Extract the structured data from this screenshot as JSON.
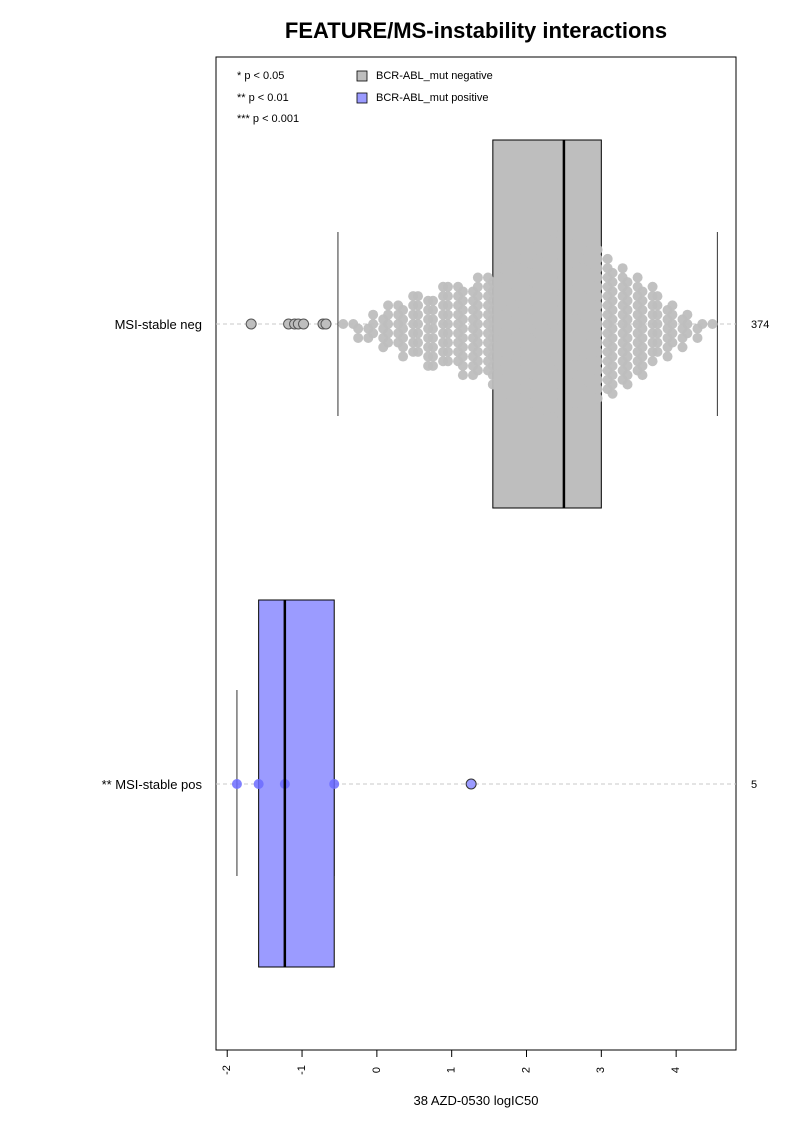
{
  "chart_data": {
    "type": "boxplot-beeswarm",
    "title": "FEATURE/MS-instability interactions",
    "xlabel": "38 AZD-0530 logIC50",
    "xlim": [
      -2.15,
      4.8
    ],
    "x_ticks": [
      "-2",
      "-1",
      "0",
      "1",
      "2",
      "3",
      "4"
    ],
    "x_tick_values": [
      -2,
      -1,
      0,
      1,
      2,
      3,
      4
    ],
    "significance_legend": [
      "* p < 0.05",
      "** p < 0.01",
      "*** p < 0.001"
    ],
    "legend": [
      {
        "label": "BCR-ABL_mut negative",
        "color": "#bebebe"
      },
      {
        "label": "BCR-ABL_mut positive",
        "color": "#9b9bff"
      }
    ],
    "groups": [
      {
        "label": "MSI-stable neg",
        "n": "374",
        "color": "#bebebe",
        "box": {
          "whisker_low": -0.52,
          "q1": 1.55,
          "median": 2.5,
          "q3": 3.0,
          "whisker_high": 4.55
        },
        "outliers": [
          -1.68,
          -1.18,
          -1.1,
          -1.05,
          -0.98,
          -0.72,
          -0.68
        ]
      },
      {
        "label": "** MSI-stable pos",
        "n": "5",
        "color": "#9b9bff",
        "box": {
          "whisker_low": -1.87,
          "q1": -1.58,
          "median": -1.23,
          "q3": -0.57,
          "whisker_high": -0.57
        },
        "points": [
          -1.87,
          -1.58,
          -1.23,
          -0.57,
          1.26
        ],
        "outliers": [
          1.26
        ]
      }
    ]
  }
}
